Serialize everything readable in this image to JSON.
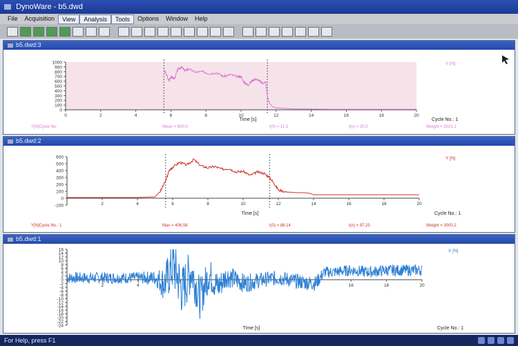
{
  "window": {
    "title": "DynoWare - b5.dwd"
  },
  "menu": [
    "File",
    "Acquisition",
    "View",
    "Analysis",
    "Tools",
    "Options",
    "Window",
    "Help"
  ],
  "toolbar_icon_count": 24,
  "status": {
    "text": "For Help, press F1"
  },
  "panels": [
    {
      "title": "b5.dwd:3",
      "channel_label": "Y [N]",
      "corner_icon": "cursor-arrow-icon",
      "xlabel": "Time [s]",
      "xaxis_note": "Cycle No.: 1",
      "footer_labels": [
        "Y[N]Cycle No.",
        "Mean = 600.0",
        "t(0) = 11.5",
        "t(n) = 20.0",
        "Weight = 3021.1"
      ],
      "chart_data": {
        "type": "line",
        "color": "#d87ad0",
        "xlim": [
          0,
          20
        ],
        "ylim": [
          0,
          1000
        ],
        "xticks": [
          0,
          2,
          4,
          6,
          8,
          10,
          12,
          14,
          16,
          18,
          20
        ],
        "xtick_labels": [
          "0",
          "2",
          "4",
          "6",
          "8",
          "10",
          "12",
          "14",
          "16",
          "18",
          "20"
        ],
        "yticks": [
          0,
          100,
          200,
          300,
          400,
          500,
          600,
          700,
          800,
          900,
          1000
        ],
        "ytick_labels": [
          "0",
          "100",
          "200",
          "300",
          "400",
          "500",
          "600",
          "700",
          "800",
          "900",
          "1000"
        ],
        "cursor_x": [
          5.6,
          11.5
        ],
        "shaded_region": true,
        "series": [
          {
            "x": [
              5.6,
              5.7,
              5.9,
              6.0,
              6.2,
              6.4,
              6.6,
              6.8,
              7.0,
              7.4,
              7.8,
              8.2,
              8.6,
              9.0,
              9.4,
              9.8,
              10.0,
              10.2,
              10.4,
              10.6,
              10.8,
              11.0,
              11.2,
              11.4,
              11.5,
              11.6,
              11.8,
              12.0,
              12.5,
              13.0,
              14.0,
              15.0,
              16.0,
              17.0,
              18.0,
              19.0,
              20.0
            ],
            "y": [
              820,
              780,
              600,
              700,
              650,
              850,
              900,
              820,
              860,
              790,
              800,
              760,
              780,
              700,
              740,
              690,
              700,
              560,
              520,
              600,
              650,
              620,
              560,
              580,
              300,
              150,
              60,
              40,
              30,
              20,
              15,
              12,
              10,
              10,
              10,
              10,
              10
            ]
          }
        ]
      }
    },
    {
      "title": "b5.dwd:2",
      "channel_label": "Y [N]",
      "xlabel": "Time [s]",
      "xaxis_note": "Cycle No.: 1",
      "footer_labels": [
        "Y[N]Cycle No.: 1",
        "Max = 406.58",
        "t(0) = 88.14",
        "t(n) = 97.25",
        "Weight = 3000.2"
      ],
      "chart_data": {
        "type": "line",
        "color": "#d0302a",
        "xlim": [
          0,
          20
        ],
        "ylim": [
          -100,
          600
        ],
        "xticks": [
          2,
          4,
          6,
          8,
          10,
          12,
          14,
          16,
          18,
          20
        ],
        "xtick_labels": [
          "2",
          "4",
          "6",
          "8",
          "10",
          "12",
          "14",
          "16",
          "18",
          "20"
        ],
        "yticks": [
          -100,
          0,
          100,
          200,
          300,
          400,
          500,
          600
        ],
        "ytick_labels": [
          "-100",
          "0",
          "100",
          "200",
          "300",
          "400",
          "500",
          "600"
        ],
        "cursor_x": [
          5.6,
          11.5
        ],
        "series": [
          {
            "x": [
              0,
              2,
              4,
              5.0,
              5.3,
              5.6,
              5.8,
              6.0,
              6.4,
              6.8,
              7.2,
              7.6,
              8.0,
              8.4,
              8.8,
              9.2,
              9.6,
              10.0,
              10.4,
              10.8,
              11.2,
              11.5,
              11.8,
              12.0,
              12.5,
              13.0,
              13.5,
              13.8,
              14.0,
              15.0,
              16.0,
              17.0,
              18.0,
              19.0,
              20.0
            ],
            "y": [
              10,
              10,
              10,
              20,
              100,
              250,
              400,
              450,
              520,
              480,
              560,
              470,
              440,
              460,
              420,
              430,
              380,
              390,
              330,
              380,
              360,
              300,
              200,
              120,
              90,
              80,
              80,
              70,
              50,
              50,
              50,
              50,
              50,
              50,
              50
            ]
          }
        ]
      }
    },
    {
      "title": "b5.dwd:1",
      "channel_label": "X [N]",
      "xlabel": "Time [s]",
      "xaxis_note": "Cycle No.: 1",
      "chart_data": {
        "type": "line",
        "color": "#2b7fd4",
        "xlim": [
          0,
          20
        ],
        "ylim": [
          -24,
          16
        ],
        "xticks": [
          2,
          4,
          16,
          18,
          20
        ],
        "xtick_labels": [
          "2",
          "4",
          "16",
          "18",
          "20"
        ],
        "yticks": [
          -24,
          -22,
          -20,
          -18,
          -16,
          -14,
          -12,
          -10,
          -8,
          -6,
          -4,
          -2,
          0,
          2,
          4,
          6,
          8,
          10,
          12,
          14,
          16
        ],
        "ytick_labels": [
          "-24",
          "-22",
          "-20",
          "-18",
          "-16",
          "-14",
          "-12",
          "-10",
          "-8",
          "-6",
          "-4",
          "-2",
          "0",
          "2",
          "4",
          "6",
          "8",
          "10",
          "12",
          "14",
          "16"
        ],
        "series": [
          {
            "x": [
              0,
              1,
              2,
              3,
              4,
              5,
              5.5,
              6.0,
              6.5,
              7.0,
              7.5,
              8.0,
              8.5,
              9.0,
              10,
              11,
              12,
              13,
              14,
              14.5,
              15,
              16,
              17,
              18,
              19,
              20
            ],
            "y": [
              1,
              1,
              1,
              1,
              1,
              1,
              -2,
              8,
              -6,
              5,
              -10,
              3,
              -4,
              2,
              -2,
              0,
              1,
              -1,
              -2,
              4,
              4,
              5,
              4,
              5,
              5,
              5
            ],
            "amplitude": [
              3,
              3,
              3,
              3,
              3,
              4,
              10,
              14,
              14,
              12,
              11,
              9,
              8,
              6,
              5,
              4,
              4,
              4,
              4,
              3,
              3,
              3,
              3,
              3,
              3,
              3
            ]
          }
        ]
      }
    }
  ]
}
